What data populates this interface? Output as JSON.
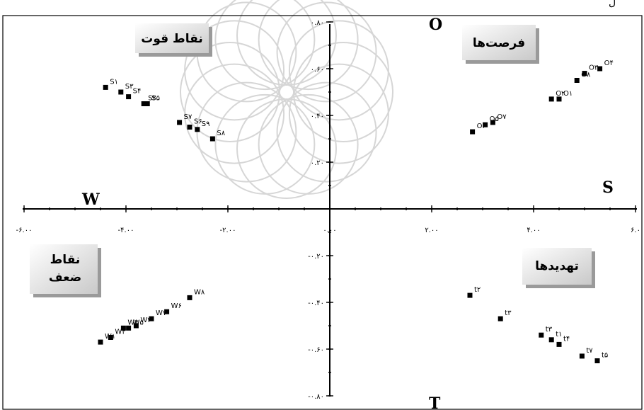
{
  "top_fragment": "ل",
  "chart_data": {
    "type": "scatter",
    "xlim": [
      -6,
      6
    ],
    "ylim": [
      -0.8,
      0.8
    ],
    "xticks": [
      -6,
      -4,
      -2,
      0,
      2,
      4,
      6
    ],
    "xtick_labels": [
      "-۶.۰۰",
      "-۴.۰۰",
      "-۲.۰۰",
      "۰.۰۰",
      "۲.۰۰",
      "۴.۰۰",
      "۶.۰"
    ],
    "yticks": [
      0.8,
      0.6,
      0.4,
      0.2,
      0,
      -0.2,
      -0.4,
      -0.6,
      -0.8
    ],
    "ytick_labels": [
      "۰.۸۰",
      "۰.۶۰",
      "۰.۴۰",
      "۰.۲۰",
      "",
      "-۰.۲۰",
      "-۰.۴۰",
      "-۰.۶۰",
      "-۰.۸۰"
    ],
    "axis_letters": {
      "top": "O",
      "bottom": "T",
      "right": "S",
      "left": "W"
    },
    "quadrant_labels": [
      {
        "key": "strengths",
        "lines": [
          "نقاط قوت"
        ]
      },
      {
        "key": "opportunities",
        "lines": [
          "فرصت‌ها"
        ]
      },
      {
        "key": "weaknesses",
        "lines": [
          "نقاط",
          "ضعف"
        ]
      },
      {
        "key": "threats",
        "lines": [
          "تهدیدها"
        ]
      }
    ],
    "points": [
      {
        "label": "S۱",
        "x": -4.4,
        "y": 0.52
      },
      {
        "label": "S۳",
        "x": -4.1,
        "y": 0.5
      },
      {
        "label": "S۴",
        "x": -3.95,
        "y": 0.48
      },
      {
        "label": "S۲",
        "x": -3.65,
        "y": 0.45
      },
      {
        "label": "S۵",
        "x": -3.58,
        "y": 0.45
      },
      {
        "label": "S۷",
        "x": -2.95,
        "y": 0.37
      },
      {
        "label": "S۶",
        "x": -2.75,
        "y": 0.35
      },
      {
        "label": "S۹",
        "x": -2.6,
        "y": 0.34
      },
      {
        "label": "S۸",
        "x": -2.3,
        "y": 0.3
      },
      {
        "label": "O۴",
        "x": 5.3,
        "y": 0.6
      },
      {
        "label": "O۳",
        "x": 5.0,
        "y": 0.58
      },
      {
        "label": "O۸",
        "x": 4.85,
        "y": 0.55
      },
      {
        "label": "O۲",
        "x": 4.35,
        "y": 0.47
      },
      {
        "label": "O۱",
        "x": 4.5,
        "y": 0.47
      },
      {
        "label": "O۷",
        "x": 3.2,
        "y": 0.37
      },
      {
        "label": "O۵",
        "x": 3.05,
        "y": 0.36
      },
      {
        "label": "O۶",
        "x": 2.8,
        "y": 0.33
      },
      {
        "label": "W۸",
        "x": -2.75,
        "y": -0.38
      },
      {
        "label": "W۶",
        "x": -3.2,
        "y": -0.44
      },
      {
        "label": "W۷",
        "x": -3.5,
        "y": -0.47
      },
      {
        "label": "W۲",
        "x": -3.8,
        "y": -0.5
      },
      {
        "label": "W۵",
        "x": -3.95,
        "y": -0.51
      },
      {
        "label": "W۳",
        "x": -4.05,
        "y": -0.51
      },
      {
        "label": "W۴",
        "x": -4.3,
        "y": -0.55
      },
      {
        "label": "W۱",
        "x": -4.5,
        "y": -0.57
      },
      {
        "label": "t۲",
        "x": 2.75,
        "y": -0.37
      },
      {
        "label": "t۳",
        "x": 3.35,
        "y": -0.47
      },
      {
        "label": "t۳",
        "x": 4.15,
        "y": -0.54
      },
      {
        "label": "t۱",
        "x": 4.35,
        "y": -0.56
      },
      {
        "label": "t۴",
        "x": 4.5,
        "y": -0.58
      },
      {
        "label": "t۷",
        "x": 4.95,
        "y": -0.63
      },
      {
        "label": "t۵",
        "x": 5.25,
        "y": -0.65
      }
    ]
  }
}
